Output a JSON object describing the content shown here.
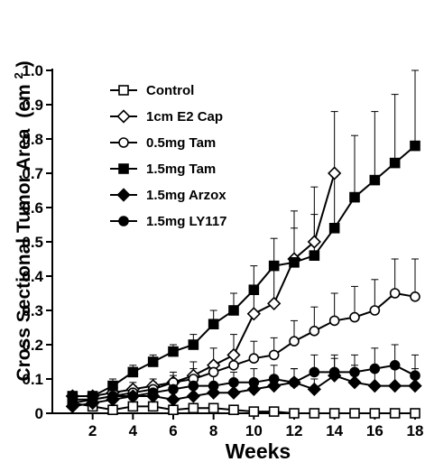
{
  "chart_data": {
    "type": "line",
    "xlabel": "Weeks",
    "ylabel": "Cross Sectional Tumor Area",
    "ylabel_unit_prefix": "(cm",
    "ylabel_unit_sup": "2",
    "ylabel_unit_suffix": ")",
    "xlim": [
      0,
      18
    ],
    "ylim": [
      0,
      1.0
    ],
    "x_ticks": [
      2,
      4,
      6,
      8,
      10,
      12,
      14,
      16,
      18
    ],
    "x_tick_labels": [
      "2",
      "4",
      "6",
      "8",
      "10",
      "12",
      "14",
      "16",
      "18"
    ],
    "y_ticks": [
      0,
      0.1,
      0.2,
      0.3,
      0.4,
      0.5,
      0.6,
      0.7,
      0.8,
      0.9,
      1.0
    ],
    "y_tick_labels": [
      "0",
      "0.1",
      "0.2",
      "0.3",
      "0.4",
      "0.5",
      "0.6",
      "0.7",
      "0.8",
      "0.9",
      "1.0"
    ],
    "grid": false,
    "legend_position": "top-left",
    "series": [
      {
        "name": "Control",
        "marker": "square-open",
        "x": [
          1,
          2,
          3,
          4,
          5,
          6,
          7,
          8,
          9,
          10,
          11,
          12,
          13,
          14,
          15,
          16,
          17,
          18
        ],
        "y": [
          0.03,
          0.02,
          0.01,
          0.02,
          0.02,
          0.01,
          0.015,
          0.015,
          0.01,
          0.005,
          0.005,
          0.0,
          0.0,
          0.0,
          0.0,
          0.0,
          0.0,
          0.0
        ],
        "err": [
          0.01,
          0.01,
          0.01,
          0.01,
          0.01,
          0.01,
          0.01,
          0.01,
          0.005,
          0.005,
          0.005,
          0.0,
          0.0,
          0.0,
          0.0,
          0.0,
          0.0,
          0.0
        ]
      },
      {
        "name": "1cm E2 Cap",
        "marker": "diamond-open",
        "x": [
          1,
          2,
          3,
          4,
          5,
          6,
          7,
          8,
          9,
          10,
          11,
          12,
          13,
          14
        ],
        "y": [
          0.05,
          0.05,
          0.06,
          0.07,
          0.08,
          0.09,
          0.11,
          0.14,
          0.17,
          0.29,
          0.32,
          0.45,
          0.5,
          0.7
        ],
        "err": [
          0.01,
          0.01,
          0.01,
          0.02,
          0.02,
          0.03,
          0.04,
          0.05,
          0.06,
          0.08,
          0.1,
          0.14,
          0.16,
          0.18
        ]
      },
      {
        "name": "0.5mg Tam",
        "marker": "circle-open",
        "x": [
          1,
          2,
          3,
          4,
          5,
          6,
          7,
          8,
          9,
          10,
          11,
          12,
          13,
          14,
          15,
          16,
          17,
          18
        ],
        "y": [
          0.04,
          0.04,
          0.05,
          0.06,
          0.07,
          0.09,
          0.1,
          0.12,
          0.14,
          0.16,
          0.17,
          0.21,
          0.24,
          0.27,
          0.28,
          0.3,
          0.35,
          0.34
        ],
        "err": [
          0.01,
          0.01,
          0.01,
          0.02,
          0.02,
          0.02,
          0.03,
          0.03,
          0.04,
          0.05,
          0.05,
          0.06,
          0.07,
          0.08,
          0.09,
          0.09,
          0.1,
          0.11
        ]
      },
      {
        "name": "1.5mg Tam",
        "marker": "square-filled",
        "x": [
          1,
          2,
          3,
          4,
          5,
          6,
          7,
          8,
          9,
          10,
          11,
          12,
          13,
          14,
          15,
          16,
          17,
          18
        ],
        "y": [
          0.05,
          0.05,
          0.08,
          0.12,
          0.15,
          0.18,
          0.2,
          0.26,
          0.3,
          0.36,
          0.43,
          0.44,
          0.46,
          0.54,
          0.63,
          0.68,
          0.73,
          0.78
        ],
        "err": [
          0.01,
          0.01,
          0.02,
          0.02,
          0.02,
          0.02,
          0.03,
          0.04,
          0.05,
          0.07,
          0.08,
          0.1,
          0.12,
          0.15,
          0.18,
          0.2,
          0.2,
          0.22
        ]
      },
      {
        "name": "1.5mg Arzox",
        "marker": "diamond-filled",
        "x": [
          1,
          2,
          3,
          4,
          5,
          6,
          7,
          8,
          9,
          10,
          11,
          12,
          13,
          14,
          15,
          16,
          17,
          18
        ],
        "y": [
          0.02,
          0.03,
          0.04,
          0.05,
          0.05,
          0.04,
          0.05,
          0.06,
          0.06,
          0.07,
          0.08,
          0.09,
          0.07,
          0.11,
          0.09,
          0.08,
          0.08,
          0.08
        ],
        "err": [
          0.01,
          0.01,
          0.01,
          0.02,
          0.02,
          0.02,
          0.02,
          0.02,
          0.02,
          0.03,
          0.03,
          0.04,
          0.03,
          0.05,
          0.05,
          0.05,
          0.05,
          0.05
        ]
      },
      {
        "name": "1.5mg LY117",
        "marker": "circle-filled",
        "x": [
          1,
          2,
          3,
          4,
          5,
          6,
          7,
          8,
          9,
          10,
          11,
          12,
          13,
          14,
          15,
          16,
          17,
          18
        ],
        "y": [
          0.03,
          0.04,
          0.05,
          0.05,
          0.06,
          0.07,
          0.08,
          0.08,
          0.09,
          0.09,
          0.1,
          0.09,
          0.12,
          0.12,
          0.12,
          0.13,
          0.14,
          0.11
        ],
        "err": [
          0.01,
          0.01,
          0.01,
          0.02,
          0.02,
          0.02,
          0.03,
          0.03,
          0.03,
          0.04,
          0.04,
          0.04,
          0.05,
          0.05,
          0.05,
          0.06,
          0.06,
          0.06
        ]
      }
    ]
  }
}
